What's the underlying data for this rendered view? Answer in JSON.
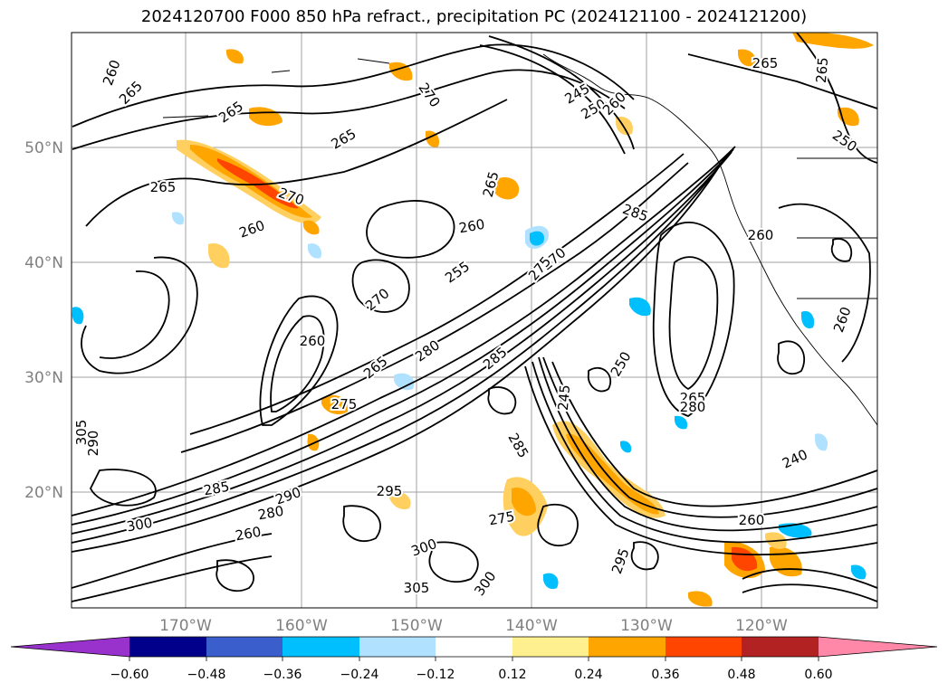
{
  "title": "2024120700 F000 850 hPa refract., precipitation PC (2024121100 - 2024121200)",
  "lat_labels": [
    "50°N",
    "40°N",
    "30°N",
    "20°N"
  ],
  "lon_labels": [
    "170°W",
    "160°W",
    "150°W",
    "140°W",
    "130°W",
    "120°W"
  ],
  "colorbar": {
    "colors": [
      "#9932cc",
      "#00008b",
      "#3a5fcd",
      "#00bfff",
      "#b0e2ff",
      "#ffffff",
      "#fff08f",
      "#ffa500",
      "#ff4500",
      "#b22222",
      "#ff88a8"
    ],
    "tick_labels": [
      "−0.60",
      "−0.48",
      "−0.36",
      "−0.24",
      "−0.12",
      "0.12",
      "0.24",
      "0.36",
      "0.48",
      "0.60"
    ]
  },
  "contour_labels": [
    "260",
    "265",
    "265",
    "265",
    "270",
    "245",
    "250",
    "260",
    "265",
    "250",
    "265",
    "265",
    "270",
    "260",
    "285",
    "260",
    "270",
    "255",
    "260",
    "265",
    "270",
    "275",
    "260",
    "265",
    "280",
    "275",
    "285",
    "245",
    "250",
    "265",
    "280",
    "240",
    "285",
    "285",
    "290",
    "295",
    "275",
    "300",
    "260",
    "295",
    "305",
    "300",
    "300",
    "305",
    "290",
    "280",
    "260",
    "260"
  ]
}
